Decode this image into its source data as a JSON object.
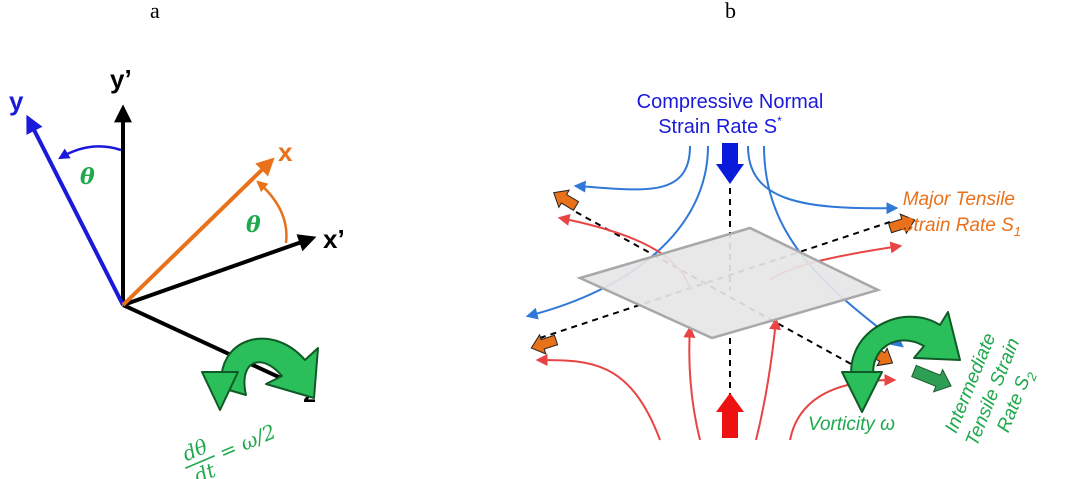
{
  "panels": {
    "a": {
      "label": "a",
      "axes": {
        "y_prime": "y’",
        "x_prime": "x’",
        "z": "z",
        "y": "y",
        "x": "x"
      },
      "angle_label": "θ",
      "equation": {
        "numerator": "dθ",
        "denominator": "dt",
        "rhs": "= ω/2"
      }
    },
    "b": {
      "label": "b",
      "compressive": {
        "line1": "Compressive Normal",
        "line2": "Strain Rate S",
        "sup": "*"
      },
      "major": {
        "line1": "Major Tensile",
        "line2": "Strain Rate S",
        "sub": "1"
      },
      "vorticity": "Vorticity ω",
      "intermediate": {
        "line1": "Intermediate",
        "line2": "Tensile Strain",
        "line3": "Rate S",
        "sub": "2"
      }
    }
  },
  "colors": {
    "black": "#000000",
    "blue_axis": "#1a1adb",
    "orange": "#e8711a",
    "green": "#1fa84d",
    "flow_blue": "#2f78d8",
    "flow_red": "#e84444",
    "plane_fill": "#e6e6e6",
    "plane_stroke": "#a8a8a8",
    "arrow_blue": "#0a1adb",
    "arrow_red": "#ee1111",
    "arrow_green": "#2e9e55"
  }
}
